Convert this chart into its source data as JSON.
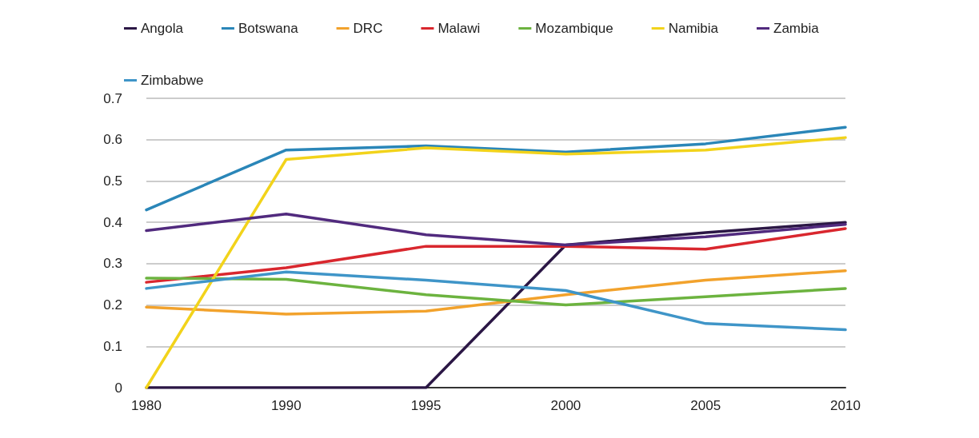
{
  "chart_data": {
    "type": "line",
    "categories": [
      "1980",
      "1990",
      "1995",
      "2000",
      "2005",
      "2010"
    ],
    "series": [
      {
        "name": "Angola",
        "color": "#2b1745",
        "values": [
          0,
          0,
          0,
          0.345,
          0.375,
          0.4
        ]
      },
      {
        "name": "Botswana",
        "color": "#2a86b8",
        "values": [
          0.43,
          0.575,
          0.585,
          0.57,
          0.59,
          0.63
        ]
      },
      {
        "name": "DRC",
        "color": "#f2a22c",
        "values": [
          0.195,
          0.178,
          0.185,
          0.225,
          0.26,
          0.283
        ]
      },
      {
        "name": "Malawi",
        "color": "#d9272e",
        "values": [
          0.255,
          0.29,
          0.342,
          0.342,
          0.335,
          0.385
        ]
      },
      {
        "name": "Mozambique",
        "color": "#6cb33f",
        "values": [
          0.265,
          0.262,
          0.225,
          0.2,
          0.22,
          0.24
        ]
      },
      {
        "name": "Namibia",
        "color": "#f2d31b",
        "values": [
          0,
          0.552,
          0.58,
          0.565,
          0.575,
          0.605
        ]
      },
      {
        "name": "Zambia",
        "color": "#512a7e",
        "values": [
          0.38,
          0.42,
          0.37,
          0.345,
          0.365,
          0.395
        ]
      },
      {
        "name": "Zimbabwe",
        "color": "#3f95c8",
        "values": [
          0.24,
          0.28,
          0.26,
          0.235,
          0.155,
          0.14
        ]
      }
    ],
    "ylim": [
      0,
      0.7
    ],
    "yticks": [
      0,
      0.1,
      0.2,
      0.3,
      0.4,
      0.5,
      0.6,
      0.7
    ],
    "grid": "y",
    "legend": "top left",
    "marker": "none",
    "line_style": "solid"
  }
}
